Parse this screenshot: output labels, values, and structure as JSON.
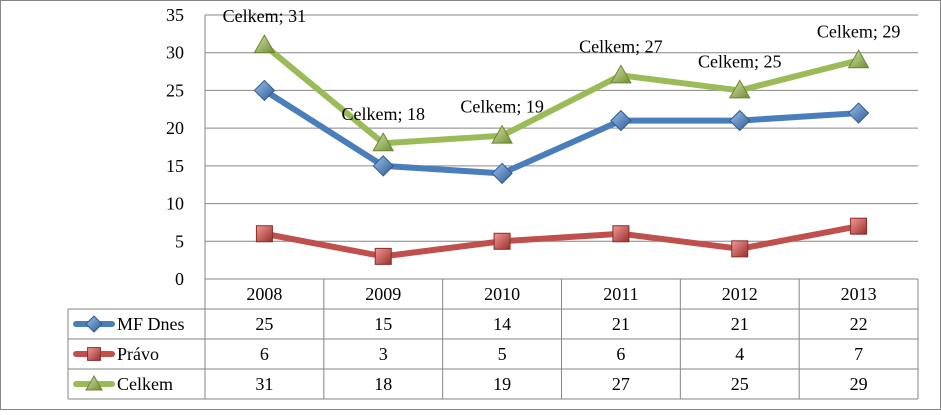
{
  "chart_data": {
    "type": "line",
    "categories": [
      "2008",
      "2009",
      "2010",
      "2011",
      "2012",
      "2013"
    ],
    "ylim": [
      0,
      35
    ],
    "yticks": [
      0,
      5,
      10,
      15,
      20,
      25,
      30,
      35
    ],
    "grid": true,
    "legend": "data-table",
    "series": [
      {
        "name": "MF Dnes",
        "values": [
          25,
          15,
          14,
          21,
          21,
          22
        ],
        "color": "#4a7ebb",
        "marker": "diamond"
      },
      {
        "name": "Právo",
        "values": [
          6,
          3,
          5,
          6,
          4,
          7
        ],
        "color": "#c0504d",
        "marker": "square"
      },
      {
        "name": "Celkem",
        "values": [
          31,
          18,
          19,
          27,
          25,
          29
        ],
        "color": "#9bbb59",
        "marker": "triangle"
      }
    ],
    "annotations": [
      "Celkem; 31",
      "Celkem; 18",
      "Celkem; 19",
      "Celkem; 27",
      "Celkem; 25",
      "Celkem; 29"
    ],
    "annotated_series": "Celkem"
  }
}
